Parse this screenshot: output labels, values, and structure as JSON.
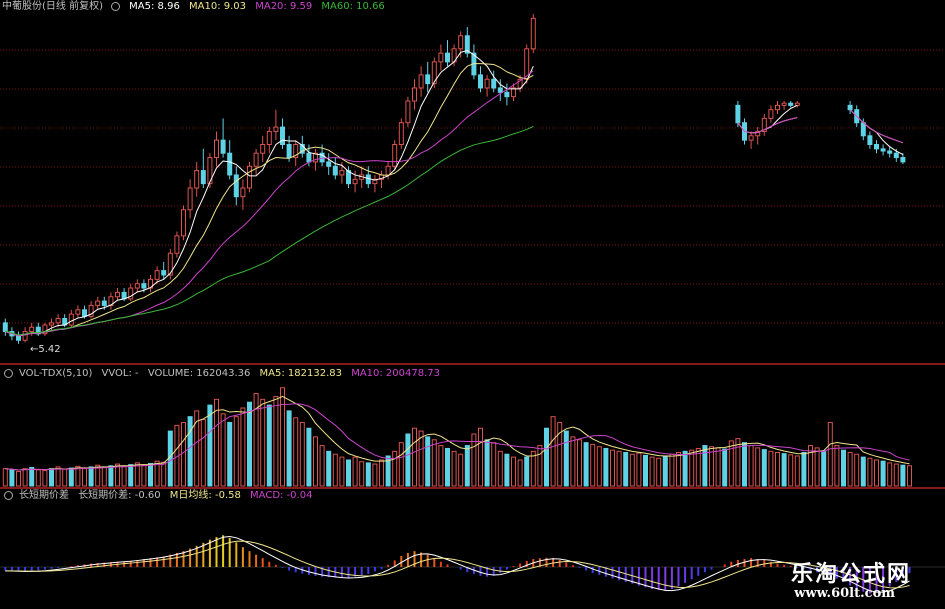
{
  "colors": {
    "up": "#d9534f",
    "down": "#5fd3e6",
    "grid": "#7a1616",
    "sep": "#b22222",
    "ma5": "#ffffff",
    "ma10": "#f0e68c",
    "ma20": "#cc44cc",
    "ma60": "#39b739",
    "text": "#c0c0c0",
    "macd_up": "#e03020",
    "macd_down": "#3050e0"
  },
  "panels": {
    "price": {
      "title": "中葡股份(日线 前复权)",
      "legend": [
        {
          "label": "MA5: 8.96",
          "color": "#ffffff"
        },
        {
          "label": "MA10: 9.03",
          "color": "#f0e68c"
        },
        {
          "label": "MA20: 9.59",
          "color": "#cc44cc"
        },
        {
          "label": "MA60: 10.66",
          "color": "#39b739"
        }
      ],
      "low_marker": "5.42"
    },
    "volume": {
      "title": "VOL-TDX(5,10)",
      "legend": [
        {
          "label": "VVOL: -",
          "color": "#c0c0c0"
        },
        {
          "label": "VOLUME: 162043.36",
          "color": "#c0c0c0"
        },
        {
          "label": "MA5: 182132.83",
          "color": "#f0e68c"
        },
        {
          "label": "MA10: 200478.73",
          "color": "#cc44cc"
        }
      ]
    },
    "macd": {
      "title": "长短期价差",
      "legend": [
        {
          "label": "长短期价差: -0.60",
          "color": "#c0c0c0"
        },
        {
          "label": "M日均线: -0.58",
          "color": "#f0e68c"
        },
        {
          "label": "MACD: -0.04",
          "color": "#cc44cc"
        }
      ]
    }
  },
  "watermark": {
    "title": "乐淘公式网",
    "url": "www.60lt.com"
  },
  "chart_data": [
    {
      "type": "candlestick",
      "title": "中葡股份(日线 前复权)",
      "ylim": [
        5,
        13
      ],
      "segments": [
        {
          "start": 0,
          "ohlc": [
            [
              5.9,
              6.0,
              5.6,
              5.7
            ],
            [
              5.7,
              5.8,
              5.5,
              5.6
            ],
            [
              5.6,
              5.7,
              5.42,
              5.5
            ],
            [
              5.5,
              5.8,
              5.45,
              5.7
            ],
            [
              5.7,
              5.9,
              5.6,
              5.8
            ],
            [
              5.8,
              5.9,
              5.6,
              5.65
            ],
            [
              5.65,
              5.9,
              5.6,
              5.85
            ],
            [
              5.85,
              6.0,
              5.7,
              5.9
            ],
            [
              5.9,
              6.1,
              5.8,
              6.0
            ],
            [
              6.0,
              6.1,
              5.8,
              5.85
            ],
            [
              5.85,
              6.2,
              5.8,
              6.1
            ],
            [
              6.1,
              6.3,
              6.0,
              6.2
            ],
            [
              6.2,
              6.3,
              6.0,
              6.05
            ],
            [
              6.05,
              6.4,
              6.0,
              6.3
            ],
            [
              6.3,
              6.5,
              6.2,
              6.4
            ],
            [
              6.4,
              6.5,
              6.2,
              6.3
            ],
            [
              6.3,
              6.6,
              6.2,
              6.5
            ],
            [
              6.5,
              6.7,
              6.4,
              6.6
            ],
            [
              6.6,
              6.7,
              6.4,
              6.45
            ],
            [
              6.45,
              6.8,
              6.4,
              6.7
            ],
            [
              6.7,
              6.9,
              6.6,
              6.8
            ],
            [
              6.8,
              6.9,
              6.6,
              6.7
            ],
            [
              6.7,
              7.0,
              6.6,
              6.9
            ],
            [
              6.9,
              7.2,
              6.8,
              7.1
            ],
            [
              7.1,
              7.3,
              6.9,
              7.0
            ],
            [
              7.0,
              7.6,
              6.9,
              7.5
            ],
            [
              7.5,
              8.0,
              7.4,
              7.9
            ],
            [
              7.9,
              8.6,
              7.8,
              8.5
            ],
            [
              8.5,
              9.2,
              8.3,
              9.0
            ],
            [
              9.0,
              9.6,
              8.8,
              9.4
            ],
            [
              9.4,
              9.9,
              9.0,
              9.1
            ],
            [
              9.1,
              9.8,
              9.0,
              9.7
            ],
            [
              9.7,
              10.3,
              9.5,
              10.1
            ],
            [
              10.1,
              10.6,
              9.7,
              9.8
            ],
            [
              9.8,
              10.1,
              9.2,
              9.3
            ],
            [
              9.3,
              9.5,
              8.6,
              8.8
            ],
            [
              8.8,
              9.2,
              8.5,
              9.0
            ],
            [
              9.0,
              9.6,
              8.9,
              9.5
            ],
            [
              9.5,
              9.9,
              9.3,
              9.8
            ],
            [
              9.8,
              10.2,
              9.6,
              10.0
            ],
            [
              10.0,
              10.4,
              9.8,
              10.3
            ],
            [
              10.3,
              10.8,
              10.1,
              10.4
            ],
            [
              10.4,
              10.6,
              9.9,
              10.0
            ],
            [
              10.0,
              10.2,
              9.6,
              9.7
            ],
            [
              9.7,
              10.1,
              9.5,
              10.0
            ],
            [
              10.0,
              10.2,
              9.7,
              9.8
            ],
            [
              9.8,
              10.0,
              9.5,
              9.6
            ],
            [
              9.6,
              9.9,
              9.4,
              9.8
            ],
            [
              9.8,
              10.0,
              9.5,
              9.6
            ],
            [
              9.6,
              9.8,
              9.3,
              9.5
            ],
            [
              9.5,
              9.7,
              9.2,
              9.3
            ],
            [
              9.3,
              9.6,
              9.1,
              9.4
            ],
            [
              9.4,
              9.5,
              9.0,
              9.1
            ],
            [
              9.1,
              9.4,
              8.9,
              9.2
            ],
            [
              9.2,
              9.5,
              9.0,
              9.3
            ],
            [
              9.3,
              9.5,
              9.0,
              9.1
            ],
            [
              9.1,
              9.3,
              8.9,
              9.2
            ],
            [
              9.2,
              9.4,
              9.0,
              9.3
            ],
            [
              9.3,
              9.6,
              9.2,
              9.5
            ],
            [
              9.5,
              10.1,
              9.4,
              10.0
            ],
            [
              10.0,
              10.6,
              9.9,
              10.5
            ],
            [
              10.5,
              11.1,
              10.4,
              11.0
            ],
            [
              11.0,
              11.5,
              10.8,
              11.3
            ],
            [
              11.3,
              11.8,
              11.1,
              11.6
            ],
            [
              11.6,
              11.9,
              11.2,
              11.4
            ],
            [
              11.4,
              12.0,
              11.3,
              11.9
            ],
            [
              11.9,
              12.3,
              11.7,
              12.1
            ],
            [
              12.1,
              12.4,
              11.8,
              11.9
            ],
            [
              11.9,
              12.3,
              11.8,
              12.2
            ],
            [
              12.2,
              12.6,
              12.0,
              12.5
            ],
            [
              12.5,
              12.7,
              12.0,
              12.1
            ],
            [
              12.1,
              12.3,
              11.5,
              11.6
            ],
            [
              11.6,
              11.8,
              11.2,
              11.3
            ],
            [
              11.3,
              11.6,
              11.1,
              11.5
            ],
            [
              11.5,
              11.7,
              11.2,
              11.3
            ],
            [
              11.3,
              11.5,
              11.0,
              11.2
            ],
            [
              11.2,
              11.4,
              10.9,
              11.1
            ],
            [
              11.1,
              11.4,
              11.0,
              11.3
            ],
            [
              11.3,
              11.6,
              11.2,
              11.5
            ],
            [
              11.5,
              12.3,
              11.4,
              12.2
            ],
            [
              12.2,
              13.0,
              12.1,
              12.9
            ]
          ]
        },
        {
          "start": 111,
          "ohlc": [
            [
              10.9,
              11.0,
              10.4,
              10.5
            ],
            [
              10.5,
              10.6,
              10.0,
              10.1
            ],
            [
              10.1,
              10.3,
              9.9,
              10.2
            ],
            [
              10.2,
              10.4,
              10.0,
              10.3
            ],
            [
              10.3,
              10.7,
              10.2,
              10.6
            ],
            [
              10.6,
              10.9,
              10.5,
              10.8
            ],
            [
              10.8,
              11.0,
              10.7,
              10.9
            ],
            [
              10.9,
              11.0,
              10.8,
              10.95
            ],
            [
              10.95,
              11.0,
              10.85,
              10.9
            ],
            [
              10.9,
              11.0,
              10.85,
              10.95
            ]
          ]
        },
        {
          "start": 128,
          "ohlc": [
            [
              10.9,
              11.0,
              10.7,
              10.8
            ],
            [
              10.8,
              10.9,
              10.4,
              10.5
            ],
            [
              10.5,
              10.6,
              10.1,
              10.2
            ],
            [
              10.2,
              10.3,
              9.9,
              10.0
            ],
            [
              10.0,
              10.1,
              9.8,
              9.9
            ],
            [
              9.9,
              10.0,
              9.75,
              9.85
            ],
            [
              9.85,
              9.95,
              9.7,
              9.8
            ],
            [
              9.8,
              9.9,
              9.6,
              9.7
            ],
            [
              9.7,
              9.8,
              9.55,
              9.6
            ]
          ]
        }
      ]
    },
    {
      "type": "bar",
      "title": "VOL-TDX(5,10)",
      "values": [
        30,
        28,
        25,
        30,
        32,
        28,
        27,
        30,
        33,
        29,
        31,
        34,
        30,
        33,
        36,
        32,
        35,
        38,
        34,
        37,
        40,
        36,
        39,
        43,
        41,
        95,
        105,
        110,
        120,
        130,
        115,
        140,
        150,
        125,
        110,
        120,
        135,
        145,
        160,
        150,
        140,
        155,
        170,
        130,
        118,
        110,
        100,
        85,
        70,
        60,
        55,
        50,
        45,
        50,
        42,
        40,
        38,
        45,
        52,
        60,
        75,
        90,
        100,
        95,
        85,
        80,
        70,
        65,
        60,
        55,
        70,
        90,
        100,
        80,
        75,
        60,
        55,
        50,
        45,
        50,
        60,
        70,
        100,
        120,
        110,
        95,
        85,
        80,
        75,
        72,
        68,
        65,
        62,
        60,
        58,
        55,
        57,
        53,
        50,
        48,
        52,
        55,
        58,
        60,
        62,
        65,
        70,
        68,
        66,
        64,
        78,
        82,
        75,
        70,
        66,
        63,
        60,
        58,
        56,
        54,
        52,
        58,
        70,
        66,
        60,
        110,
        70,
        62,
        58,
        55,
        50,
        48,
        45,
        43,
        40,
        38,
        36,
        35
      ]
    },
    {
      "type": "bar",
      "title": "长短期价差",
      "values": [
        -0.08,
        -0.09,
        -0.1,
        -0.1,
        -0.09,
        -0.08,
        -0.06,
        -0.04,
        -0.02,
        0.0,
        0.02,
        0.04,
        0.06,
        0.08,
        0.09,
        0.1,
        0.11,
        0.12,
        0.13,
        0.14,
        0.16,
        0.18,
        0.2,
        0.22,
        0.24,
        0.28,
        0.32,
        0.36,
        0.42,
        0.48,
        0.55,
        0.62,
        0.68,
        0.72,
        0.66,
        0.56,
        0.45,
        0.36,
        0.28,
        0.2,
        0.12,
        0.05,
        -0.02,
        -0.08,
        -0.12,
        -0.15,
        -0.18,
        -0.2,
        -0.22,
        -0.23,
        -0.24,
        -0.25,
        -0.24,
        -0.22,
        -0.2,
        -0.16,
        -0.1,
        -0.05,
        0.05,
        0.15,
        0.25,
        0.32,
        0.36,
        0.33,
        0.28,
        0.2,
        0.12,
        0.06,
        0.0,
        -0.06,
        -0.12,
        -0.16,
        -0.2,
        -0.22,
        -0.2,
        -0.14,
        -0.06,
        0.02,
        0.08,
        0.14,
        0.18,
        0.2,
        0.21,
        0.2,
        0.16,
        0.1,
        0.04,
        -0.02,
        -0.08,
        -0.14,
        -0.18,
        -0.22,
        -0.26,
        -0.3,
        -0.34,
        -0.38,
        -0.42,
        -0.46,
        -0.5,
        -0.52,
        -0.54,
        -0.5,
        -0.44,
        -0.36,
        -0.28,
        -0.2,
        -0.12,
        -0.06,
        0.0,
        0.06,
        0.12,
        0.16,
        0.18,
        0.2,
        0.18,
        0.16,
        0.12,
        0.08,
        0.05,
        0.02,
        -0.02,
        -0.05,
        -0.08,
        -0.12,
        -0.16,
        -0.2,
        -0.26,
        -0.34,
        -0.42,
        -0.5,
        -0.56,
        -0.6,
        -0.58,
        -0.52,
        -0.44,
        -0.34,
        -0.24,
        -0.14
      ]
    }
  ]
}
